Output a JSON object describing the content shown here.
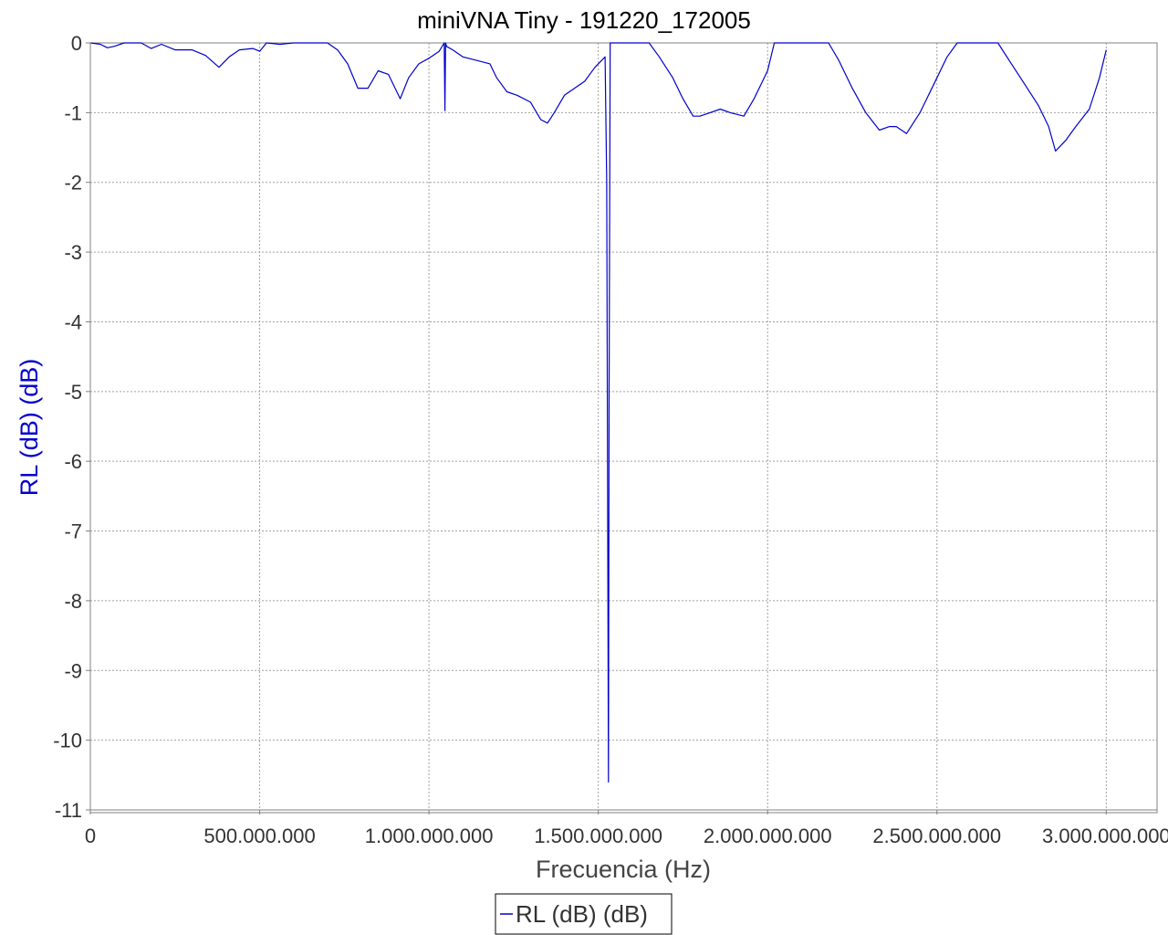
{
  "chart_data": {
    "type": "line",
    "title": "miniVNA Tiny - 191220_172005",
    "xlabel": "Frecuencia (Hz)",
    "ylabel": "RL (dB) (dB)",
    "xlim": [
      0,
      3150000000
    ],
    "ylim": [
      -11,
      0
    ],
    "x_ticks": [
      0,
      500000000,
      1000000000,
      1500000000,
      2000000000,
      2500000000,
      3000000000
    ],
    "x_tick_labels": [
      "0",
      "500.000.000",
      "1.000.000.000",
      "1.500.000.000",
      "2.000.000.000",
      "2.500.000.000",
      "3.000.000.000"
    ],
    "y_ticks": [
      0,
      -1,
      -2,
      -3,
      -4,
      -5,
      -6,
      -7,
      -8,
      -9,
      -10,
      -11
    ],
    "y_tick_labels": [
      "0",
      "-1",
      "-2",
      "-3",
      "-4",
      "-5",
      "-6",
      "-7",
      "-8",
      "-9",
      "-10",
      "-11"
    ],
    "grid": true,
    "legend_position": "bottom-center",
    "ylabel_color": "#0000cc",
    "series": [
      {
        "name": "RL (dB) (dB)",
        "color": "#0000cc",
        "x": [
          1000000,
          30000000,
          50000000,
          70000000,
          100000000,
          150000000,
          180000000,
          210000000,
          250000000,
          280000000,
          300000000,
          340000000,
          380000000,
          410000000,
          440000000,
          480000000,
          500000000,
          520000000,
          560000000,
          600000000,
          650000000,
          680000000,
          700000000,
          730000000,
          760000000,
          790000000,
          820000000,
          850000000,
          880000000,
          915000000,
          940000000,
          970000000,
          1000000000,
          1030000000,
          1045000000,
          1047000000,
          1049000000,
          1052000000,
          1070000000,
          1100000000,
          1140000000,
          1180000000,
          1200000000,
          1230000000,
          1260000000,
          1300000000,
          1330000000,
          1350000000,
          1370000000,
          1400000000,
          1430000000,
          1460000000,
          1490000000,
          1520000000,
          1525000000,
          1530000000,
          1532000000,
          1535000000,
          1540000000,
          1560000000,
          1600000000,
          1650000000,
          1680000000,
          1720000000,
          1750000000,
          1780000000,
          1800000000,
          1830000000,
          1860000000,
          1890000000,
          1930000000,
          1960000000,
          2000000000,
          2020000000,
          2060000000,
          2100000000,
          2150000000,
          2180000000,
          2210000000,
          2250000000,
          2290000000,
          2330000000,
          2360000000,
          2380000000,
          2410000000,
          2450000000,
          2490000000,
          2530000000,
          2560000000,
          2600000000,
          2640000000,
          2680000000,
          2720000000,
          2760000000,
          2800000000,
          2830000000,
          2850000000,
          2880000000,
          2910000000,
          2950000000,
          2980000000,
          3000000000
        ],
        "y": [
          0,
          -0.02,
          -0.07,
          -0.05,
          0,
          0,
          -0.08,
          -0.02,
          -0.1,
          -0.1,
          -0.1,
          -0.18,
          -0.35,
          -0.2,
          -0.1,
          -0.08,
          -0.12,
          0,
          -0.02,
          0,
          0,
          0,
          0,
          -0.1,
          -0.3,
          -0.65,
          -0.65,
          -0.4,
          -0.45,
          -0.8,
          -0.5,
          -0.3,
          -0.22,
          -0.12,
          0,
          -0.97,
          0,
          -0.05,
          -0.1,
          -0.2,
          -0.25,
          -0.3,
          -0.5,
          -0.7,
          -0.75,
          -0.85,
          -1.1,
          -1.15,
          -1.0,
          -0.75,
          -0.65,
          -0.55,
          -0.35,
          -0.2,
          -2.0,
          -10.6,
          -5.0,
          0,
          0,
          0,
          0,
          0,
          -0.2,
          -0.5,
          -0.8,
          -1.05,
          -1.05,
          -1.0,
          -0.95,
          -1.0,
          -1.05,
          -0.8,
          -0.4,
          0,
          0,
          0,
          0,
          0,
          -0.25,
          -0.65,
          -1.0,
          -1.25,
          -1.2,
          -1.2,
          -1.3,
          -1.0,
          -0.6,
          -0.2,
          0,
          0,
          0,
          0,
          -0.3,
          -0.6,
          -0.9,
          -1.2,
          -1.55,
          -1.4,
          -1.2,
          -0.95,
          -0.5,
          -0.1
        ]
      }
    ]
  }
}
